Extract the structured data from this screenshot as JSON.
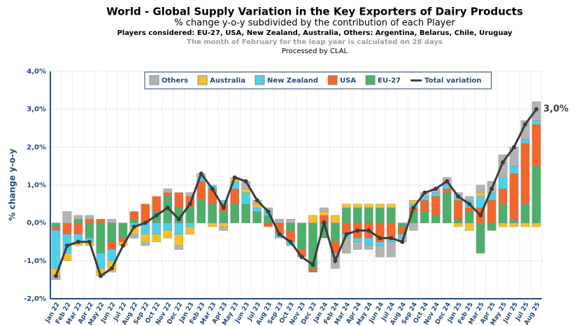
{
  "chart_data": {
    "type": "bar",
    "stacked": true,
    "title": "World - Global Supply Variation in the Key Exporters of Dairy Products",
    "subtitle": "% change y-o-y subdivided by the contribution of each Player",
    "players_note": "Players considered: EU-27, USA, New Zealand, Australia, Others: Argentina, Belarus, Chile, Uruguay",
    "leap_note": "The month of February for the leap year is calculated on 28 days",
    "credit": "Processed by CLAL",
    "ylabel": "% change y-o-y",
    "categories": [
      "Jan 22",
      "Feb 22",
      "Mar 22",
      "Apr 22",
      "May 22",
      "Jun 22",
      "Jul 22",
      "Aug 22",
      "Sep 22",
      "Oct 22",
      "Nov 22",
      "Dec 22",
      "Jan 23",
      "Feb 23",
      "Mar 23",
      "Apr 23",
      "May 23",
      "Jun 23",
      "Jul 23",
      "Aug 23",
      "Sep 23",
      "Oct 23",
      "Nov 23",
      "Dec 23",
      "Jan 24",
      "Feb 24",
      "Mar 24",
      "Apr 24",
      "May 24",
      "Jun 24",
      "Jul 24",
      "Aug 24",
      "Sep 24",
      "Oct 24",
      "Nov 24",
      "Dec 24",
      "Jan 25",
      "Feb 25",
      "Mar 25",
      "Apr 25",
      "May 25",
      "Jun 25",
      "Jul 25",
      "Aug 25"
    ],
    "series": [
      {
        "name": "Others",
        "color": "#b3b3b3",
        "values": [
          -0.1,
          0.3,
          0.1,
          0.1,
          0.0,
          0.1,
          0.0,
          -0.1,
          -0.1,
          0.0,
          0.1,
          -0.1,
          0.1,
          0.1,
          0.0,
          -0.1,
          0.0,
          0.2,
          0.1,
          0.1,
          0.1,
          0.1,
          0.0,
          0.0,
          0.1,
          -0.3,
          -0.4,
          -0.2,
          -0.1,
          -0.3,
          -0.4,
          -0.1,
          -0.2,
          0.1,
          0.1,
          0.2,
          0.1,
          0.1,
          0.2,
          0.3,
          0.6,
          0.5,
          0.5,
          0.5
        ]
      },
      {
        "name": "Australia",
        "color": "#f5c12a",
        "values": [
          -0.2,
          -0.2,
          -0.1,
          -0.1,
          -0.2,
          -0.3,
          -0.1,
          -0.2,
          -0.2,
          -0.2,
          -0.2,
          -0.3,
          -0.2,
          0.0,
          -0.1,
          -0.1,
          0.1,
          0.1,
          0.1,
          0.0,
          0.0,
          0.0,
          0.0,
          0.2,
          0.1,
          0.2,
          0.1,
          0.1,
          0.1,
          0.1,
          0.1,
          0.0,
          0.1,
          0.0,
          0.0,
          0.0,
          -0.1,
          -0.2,
          0.1,
          0.0,
          -0.1,
          -0.1,
          -0.1,
          -0.1
        ]
      },
      {
        "name": "New Zealand",
        "color": "#4fd0ea",
        "values": [
          -1.0,
          -0.5,
          -0.2,
          -0.1,
          -0.4,
          -0.3,
          0.0,
          -0.1,
          -0.3,
          -0.3,
          -0.2,
          -0.3,
          -0.1,
          0.1,
          0.1,
          0.1,
          0.2,
          0.3,
          0.1,
          0.1,
          -0.1,
          -0.1,
          0.0,
          0.0,
          0.0,
          -0.1,
          -0.1,
          -0.1,
          -0.2,
          -0.1,
          -0.1,
          -0.1,
          0.1,
          0.1,
          0.1,
          0.1,
          0.1,
          0.2,
          0.3,
          0.2,
          0.3,
          0.2,
          0.1,
          0.1
        ]
      },
      {
        "name": "USA",
        "color": "#f2672c",
        "values": [
          -0.1,
          -0.3,
          -0.3,
          0.1,
          0.1,
          -0.2,
          -0.1,
          0.2,
          0.5,
          0.4,
          0.1,
          0.4,
          0.3,
          0.5,
          0.4,
          0.2,
          0.4,
          0.0,
          0.0,
          -0.1,
          -0.3,
          -0.3,
          -0.2,
          -0.1,
          0.2,
          -0.3,
          -0.3,
          -0.4,
          -0.4,
          -0.5,
          -0.4,
          -0.2,
          0.1,
          0.3,
          0.5,
          0.1,
          0.5,
          0.1,
          0.4,
          0.6,
          0.4,
          1.2,
          1.6,
          1.1
        ]
      },
      {
        "name": "EU-27",
        "color": "#4caf6a",
        "values": [
          -0.1,
          0.0,
          0.1,
          -0.4,
          -0.8,
          -0.5,
          -0.4,
          0.1,
          0.0,
          0.3,
          0.7,
          0.4,
          0.4,
          0.6,
          0.5,
          0.3,
          0.5,
          0.5,
          0.3,
          0.2,
          0.0,
          -0.2,
          -0.7,
          -1.2,
          -0.4,
          -0.5,
          0.4,
          0.4,
          0.4,
          0.4,
          0.4,
          -0.1,
          0.3,
          0.3,
          0.2,
          0.8,
          0.1,
          0.3,
          -0.8,
          -0.2,
          0.5,
          0.1,
          0.5,
          1.5
        ]
      },
      {
        "name": "Total variation",
        "color": "#3c3c3c",
        "type": "line",
        "values": [
          -1.4,
          -0.6,
          -0.5,
          -0.5,
          -1.4,
          -1.2,
          -0.6,
          -0.1,
          0.0,
          0.2,
          0.4,
          0.1,
          0.5,
          1.3,
          0.9,
          0.4,
          1.2,
          1.1,
          0.6,
          0.3,
          -0.3,
          -0.5,
          -0.9,
          -1.1,
          0.0,
          -1.0,
          -0.3,
          -0.2,
          -0.2,
          -0.4,
          -0.4,
          -0.5,
          0.4,
          0.8,
          0.9,
          1.1,
          0.7,
          0.5,
          0.2,
          0.9,
          1.6,
          2.0,
          2.6,
          3.0
        ],
        "value_labels": [
          null,
          null,
          null,
          null,
          null,
          null,
          null,
          null,
          null,
          null,
          null,
          null,
          null,
          null,
          null,
          null,
          null,
          null,
          null,
          null,
          null,
          null,
          null,
          null,
          null,
          null,
          null,
          null,
          null,
          null,
          null,
          null,
          null,
          null,
          null,
          null,
          null,
          null,
          null,
          null,
          null,
          null,
          null,
          "3,0%"
        ]
      }
    ],
    "ylim": [
      -2,
      4
    ],
    "yticks": [
      {
        "value": -2,
        "label": "-2,0%"
      },
      {
        "value": -1,
        "label": "-1,0%"
      },
      {
        "value": 0,
        "label": "0,0%"
      },
      {
        "value": 1,
        "label": "1,0%"
      },
      {
        "value": 2,
        "label": "2,0%"
      },
      {
        "value": 3,
        "label": "3,0%"
      },
      {
        "value": 4,
        "label": "4,0%"
      }
    ],
    "grid": true
  }
}
